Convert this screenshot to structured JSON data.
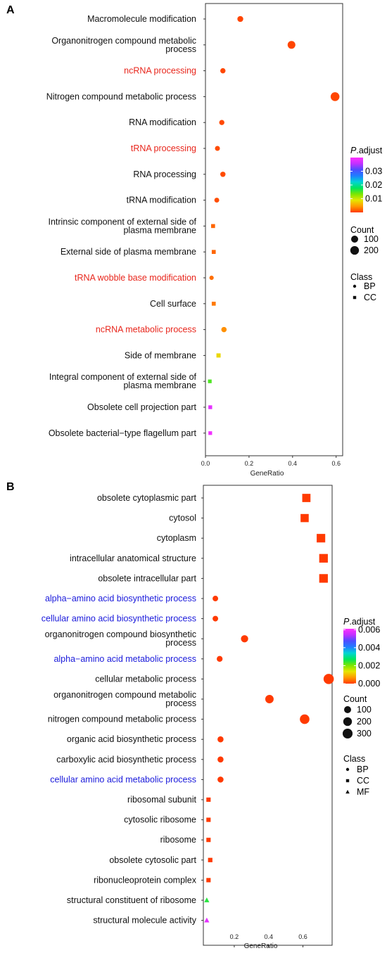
{
  "chart_data": [
    {
      "panel": "A",
      "type": "scatter",
      "xlabel": "GeneRatio",
      "xlim": [
        0.0,
        0.63
      ],
      "xticks": [
        "0.0",
        "0.2",
        "0.4",
        "0.6"
      ],
      "xtick_values": [
        0.0,
        0.2,
        0.4,
        0.6
      ],
      "terms": [
        {
          "label": [
            "Macromolecule modification"
          ],
          "x": 0.16,
          "count": 50,
          "p": 0.0005,
          "class": "BP",
          "highlight": false
        },
        {
          "label": [
            "Organonitrogen compound metabolic",
            "process"
          ],
          "x": 0.395,
          "count": 140,
          "p": 0.0005,
          "class": "BP",
          "highlight": false
        },
        {
          "label": [
            "ncRNA processing"
          ],
          "x": 0.08,
          "count": 30,
          "p": 0.0006,
          "class": "BP",
          "highlight": true
        },
        {
          "label": [
            "Nitrogen compound metabolic process"
          ],
          "x": 0.595,
          "count": 210,
          "p": 0.0005,
          "class": "BP",
          "highlight": false
        },
        {
          "label": [
            "RNA modification"
          ],
          "x": 0.075,
          "count": 28,
          "p": 0.0007,
          "class": "BP",
          "highlight": false
        },
        {
          "label": [
            "tRNA processing"
          ],
          "x": 0.055,
          "count": 22,
          "p": 0.0008,
          "class": "BP",
          "highlight": true
        },
        {
          "label": [
            "RNA processing"
          ],
          "x": 0.08,
          "count": 30,
          "p": 0.0008,
          "class": "BP",
          "highlight": false
        },
        {
          "label": [
            "tRNA modification"
          ],
          "x": 0.052,
          "count": 20,
          "p": 0.0009,
          "class": "BP",
          "highlight": false
        },
        {
          "label": [
            "Intrinsic component of external side of",
            "plasma membrane"
          ],
          "x": 0.035,
          "count": 15,
          "p": 0.002,
          "class": "CC",
          "highlight": false
        },
        {
          "label": [
            "External side of plasma membrane"
          ],
          "x": 0.038,
          "count": 16,
          "p": 0.002,
          "class": "CC",
          "highlight": false
        },
        {
          "label": [
            "tRNA wobble base modification"
          ],
          "x": 0.028,
          "count": 10,
          "p": 0.0025,
          "class": "BP",
          "highlight": true
        },
        {
          "label": [
            "Cell surface"
          ],
          "x": 0.038,
          "count": 16,
          "p": 0.003,
          "class": "CC",
          "highlight": false
        },
        {
          "label": [
            "ncRNA metabolic process"
          ],
          "x": 0.085,
          "count": 32,
          "p": 0.004,
          "class": "BP",
          "highlight": true
        },
        {
          "label": [
            "Side of membrane"
          ],
          "x": 0.06,
          "count": 22,
          "p": 0.008,
          "class": "CC",
          "highlight": false
        },
        {
          "label": [
            "Integral component of external side of",
            "plasma membrane"
          ],
          "x": 0.02,
          "count": 10,
          "p": 0.015,
          "class": "CC",
          "highlight": false
        },
        {
          "label": [
            "Obsolete cell projection part"
          ],
          "x": 0.022,
          "count": 12,
          "p": 0.038,
          "class": "CC",
          "highlight": false
        },
        {
          "label": [
            "Obsolete bacterial−type flagellum part"
          ],
          "x": 0.022,
          "count": 10,
          "p": 0.039,
          "class": "CC",
          "highlight": false
        }
      ],
      "legend": {
        "padjust_title": [
          "P",
          ".adjust"
        ],
        "padjust_ticks": [
          "0.03",
          "0.02",
          "0.01"
        ],
        "padjust_tick_values": [
          0.03,
          0.02,
          0.01
        ],
        "padjust_range": [
          0.0,
          0.04
        ],
        "count_title": "Count",
        "count_items": [
          {
            "label": "100",
            "value": 100
          },
          {
            "label": "200",
            "value": 200
          }
        ],
        "class_title": "Class",
        "class_items": [
          {
            "label": "BP",
            "shape": "circle"
          },
          {
            "label": "CC",
            "shape": "square"
          }
        ]
      },
      "highlight_color": "#e8261c"
    },
    {
      "panel": "B",
      "type": "scatter",
      "xlabel": "GeneRatio",
      "xlim": [
        0.02,
        0.77
      ],
      "xticks": [
        "0.2",
        "0.4",
        "0.6"
      ],
      "xtick_values": [
        0.2,
        0.4,
        0.6
      ],
      "terms": [
        {
          "label": [
            "obsolete cytoplasmic part"
          ],
          "x": 0.62,
          "count": 280,
          "p": 0.0,
          "class": "CC",
          "highlight": false
        },
        {
          "label": [
            "cytosol"
          ],
          "x": 0.61,
          "count": 270,
          "p": 0.0,
          "class": "CC",
          "highlight": false
        },
        {
          "label": [
            "cytoplasm"
          ],
          "x": 0.705,
          "count": 310,
          "p": 0.0,
          "class": "CC",
          "highlight": false
        },
        {
          "label": [
            "intracellular anatomical structure"
          ],
          "x": 0.72,
          "count": 320,
          "p": 0.0,
          "class": "CC",
          "highlight": false
        },
        {
          "label": [
            "obsolete intracellular part"
          ],
          "x": 0.72,
          "count": 320,
          "p": 0.0,
          "class": "CC",
          "highlight": false
        },
        {
          "label": [
            "alpha−amino acid biosynthetic process"
          ],
          "x": 0.09,
          "count": 40,
          "p": 0.0,
          "class": "BP",
          "highlight": true
        },
        {
          "label": [
            "cellular amino acid biosynthetic process"
          ],
          "x": 0.09,
          "count": 40,
          "p": 0.0,
          "class": "BP",
          "highlight": true
        },
        {
          "label": [
            "organonitrogen compound biosynthetic",
            "process"
          ],
          "x": 0.26,
          "count": 110,
          "p": 0.0,
          "class": "BP",
          "highlight": false
        },
        {
          "label": [
            "alpha−amino acid metabolic process"
          ],
          "x": 0.115,
          "count": 50,
          "p": 0.0,
          "class": "BP",
          "highlight": true
        },
        {
          "label": [
            "cellular metabolic process"
          ],
          "x": 0.75,
          "count": 330,
          "p": 0.0,
          "class": "BP",
          "highlight": false
        },
        {
          "label": [
            "organonitrogen compound metabolic",
            "process"
          ],
          "x": 0.405,
          "count": 180,
          "p": 0.0,
          "class": "BP",
          "highlight": false
        },
        {
          "label": [
            "nitrogen compound metabolic process"
          ],
          "x": 0.61,
          "count": 270,
          "p": 0.0,
          "class": "BP",
          "highlight": false
        },
        {
          "label": [
            "organic acid biosynthetic process"
          ],
          "x": 0.12,
          "count": 55,
          "p": 0.0,
          "class": "BP",
          "highlight": false
        },
        {
          "label": [
            "carboxylic acid biosynthetic process"
          ],
          "x": 0.12,
          "count": 55,
          "p": 0.0,
          "class": "BP",
          "highlight": false
        },
        {
          "label": [
            "cellular amino acid metabolic process"
          ],
          "x": 0.12,
          "count": 55,
          "p": 0.0,
          "class": "BP",
          "highlight": true
        },
        {
          "label": [
            "ribosomal subunit"
          ],
          "x": 0.05,
          "count": 25,
          "p": 0.0,
          "class": "CC",
          "highlight": false
        },
        {
          "label": [
            "cytosolic ribosome"
          ],
          "x": 0.05,
          "count": 25,
          "p": 0.0,
          "class": "CC",
          "highlight": false
        },
        {
          "label": [
            "ribosome"
          ],
          "x": 0.05,
          "count": 25,
          "p": 0.0,
          "class": "CC",
          "highlight": false
        },
        {
          "label": [
            "obsolete cytosolic part"
          ],
          "x": 0.06,
          "count": 28,
          "p": 0.0,
          "class": "CC",
          "highlight": false
        },
        {
          "label": [
            "ribonucleoprotein complex"
          ],
          "x": 0.05,
          "count": 25,
          "p": 0.0,
          "class": "CC",
          "highlight": false
        },
        {
          "label": [
            "structural constituent of ribosome"
          ],
          "x": 0.04,
          "count": 25,
          "p": 0.0025,
          "class": "MF",
          "highlight": false
        },
        {
          "label": [
            "structural molecule activity"
          ],
          "x": 0.04,
          "count": 25,
          "p": 0.0058,
          "class": "MF",
          "highlight": false
        }
      ],
      "legend": {
        "padjust_title": [
          "P",
          ".adjust"
        ],
        "padjust_ticks": [
          "0.006",
          "0.004",
          "0.002",
          "0.000"
        ],
        "padjust_tick_values": [
          0.006,
          0.004,
          0.002,
          0.0
        ],
        "padjust_range": [
          0.0,
          0.0061
        ],
        "count_title": "Count",
        "count_items": [
          {
            "label": "100",
            "value": 100
          },
          {
            "label": "200",
            "value": 200
          },
          {
            "label": "300",
            "value": 300
          }
        ],
        "class_title": "Class",
        "class_items": [
          {
            "label": "BP",
            "shape": "circle"
          },
          {
            "label": "CC",
            "shape": "square"
          },
          {
            "label": "MF",
            "shape": "triangle"
          }
        ]
      },
      "highlight_color": "#1a1adb"
    }
  ],
  "colormap": [
    "#ff3a00",
    "#ff9900",
    "#e6e600",
    "#7ce600",
    "#00e65c",
    "#00d4d4",
    "#1e7fff",
    "#4d4dff",
    "#c230ff",
    "#ff30ff"
  ]
}
